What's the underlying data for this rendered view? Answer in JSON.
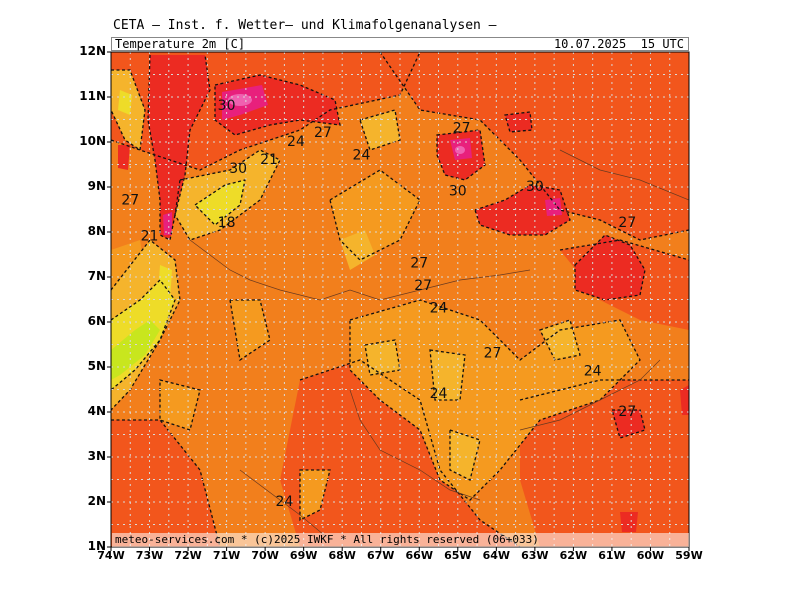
{
  "header": {
    "title": "CETA — Inst. f. Wetter— und Klimafolgenanalysen —",
    "parameter": "Temperature 2m [C]",
    "datetime": "10.07.2025  15 UTC"
  },
  "footer": {
    "credit": "meteo-services.com * (c)2025 IWKF * All rights reserved (06+033)"
  },
  "axes": {
    "x_labels": [
      "74W",
      "73W",
      "72W",
      "71W",
      "70W",
      "69W",
      "68W",
      "67W",
      "66W",
      "65W",
      "64W",
      "63W",
      "62W",
      "61W",
      "60W",
      "59W"
    ],
    "y_labels": [
      "12N",
      "11N",
      "10N",
      "9N",
      "8N",
      "7N",
      "6N",
      "5N",
      "4N",
      "3N",
      "2N",
      "1N"
    ],
    "lon_range": [
      -74,
      -59
    ],
    "lat_range": [
      1,
      12
    ]
  },
  "contour_labels": [
    {
      "text": "30",
      "lon": -71.0,
      "lat": 10.8
    },
    {
      "text": "27",
      "lon": -68.5,
      "lat": 10.2
    },
    {
      "text": "24",
      "lon": -69.2,
      "lat": 10.0
    },
    {
      "text": "21",
      "lon": -69.9,
      "lat": 9.6
    },
    {
      "text": "30",
      "lon": -70.7,
      "lat": 9.4
    },
    {
      "text": "24",
      "lon": -67.5,
      "lat": 9.7
    },
    {
      "text": "27",
      "lon": -64.9,
      "lat": 10.3
    },
    {
      "text": "30",
      "lon": -65.0,
      "lat": 8.9
    },
    {
      "text": "30",
      "lon": -63.0,
      "lat": 9.0
    },
    {
      "text": "27",
      "lon": -60.6,
      "lat": 8.2
    },
    {
      "text": "27",
      "lon": -73.5,
      "lat": 8.7
    },
    {
      "text": "18",
      "lon": -71.0,
      "lat": 8.2
    },
    {
      "text": "21",
      "lon": -73.0,
      "lat": 7.9
    },
    {
      "text": "27",
      "lon": -66.0,
      "lat": 7.3
    },
    {
      "text": "27",
      "lon": -65.9,
      "lat": 6.8
    },
    {
      "text": "24",
      "lon": -65.5,
      "lat": 6.3
    },
    {
      "text": "27",
      "lon": -64.1,
      "lat": 5.3
    },
    {
      "text": "24",
      "lon": -61.5,
      "lat": 4.9
    },
    {
      "text": "24",
      "lon": -65.5,
      "lat": 4.4
    },
    {
      "text": "27",
      "lon": -60.6,
      "lat": 4.0
    },
    {
      "text": "24",
      "lon": -69.5,
      "lat": 2.0
    }
  ],
  "colors": {
    "orange": "#f27f1c",
    "orange_light": "#f59a1f",
    "yellow_orange": "#f5b42c",
    "yellow": "#eedc28",
    "yellow_green": "#c8e61e",
    "red_orange": "#f25a1c",
    "red": "#ec2b22",
    "magenta": "#e8207c",
    "pink": "#f060b0"
  }
}
